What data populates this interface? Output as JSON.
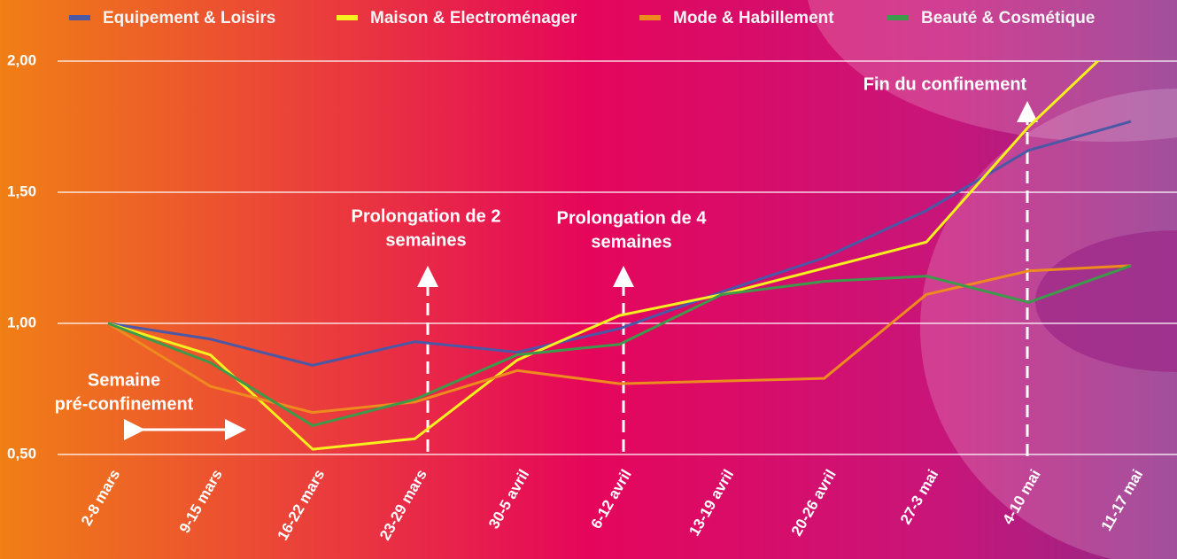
{
  "chart_data": {
    "type": "line",
    "categories": [
      "2-8 mars",
      "9-15 mars",
      "16-22 mars",
      "23-29 mars",
      "30-5 avril",
      "6-12 avril",
      "13-19 avril",
      "20-26 avril",
      "27-3 mai",
      "4-10 mai",
      "11-17 mai"
    ],
    "series": [
      {
        "name": "Equipement & Loisirs",
        "color": "#4a58a6",
        "values": [
          1.0,
          0.94,
          0.84,
          0.93,
          0.89,
          0.98,
          1.12,
          1.25,
          1.43,
          1.66,
          1.77
        ]
      },
      {
        "name": "Maison & Electroménager",
        "color": "#f5f01e",
        "values": [
          1.0,
          0.88,
          0.52,
          0.56,
          0.86,
          1.03,
          1.11,
          1.21,
          1.31,
          1.75,
          2.12
        ]
      },
      {
        "name": "Mode & Habillement",
        "color": "#ee8a1e",
        "values": [
          1.0,
          0.76,
          0.66,
          0.7,
          0.82,
          0.77,
          0.78,
          0.79,
          1.11,
          1.2,
          1.22
        ]
      },
      {
        "name": "Beauté & Cosmétique",
        "color": "#3c9a4a",
        "values": [
          1.0,
          0.85,
          0.61,
          0.71,
          0.88,
          0.92,
          1.11,
          1.16,
          1.18,
          1.08,
          1.22
        ]
      }
    ],
    "ylim": [
      0.5,
      2.0
    ],
    "yticks": [
      {
        "value": 0.5,
        "label": "0,50"
      },
      {
        "value": 1.0,
        "label": "1,00"
      },
      {
        "value": 1.5,
        "label": "1,50"
      },
      {
        "value": 2.0,
        "label": "2,00"
      }
    ],
    "grid": true,
    "legend": "top",
    "annotations": [
      {
        "lines": [
          "Semaine",
          "pré-confinement"
        ]
      },
      {
        "lines": [
          "Prolongation de 2",
          "semaines"
        ]
      },
      {
        "lines": [
          "Prolongation de 4",
          "semaines"
        ]
      },
      {
        "lines": [
          "Fin du confinement"
        ]
      }
    ]
  }
}
